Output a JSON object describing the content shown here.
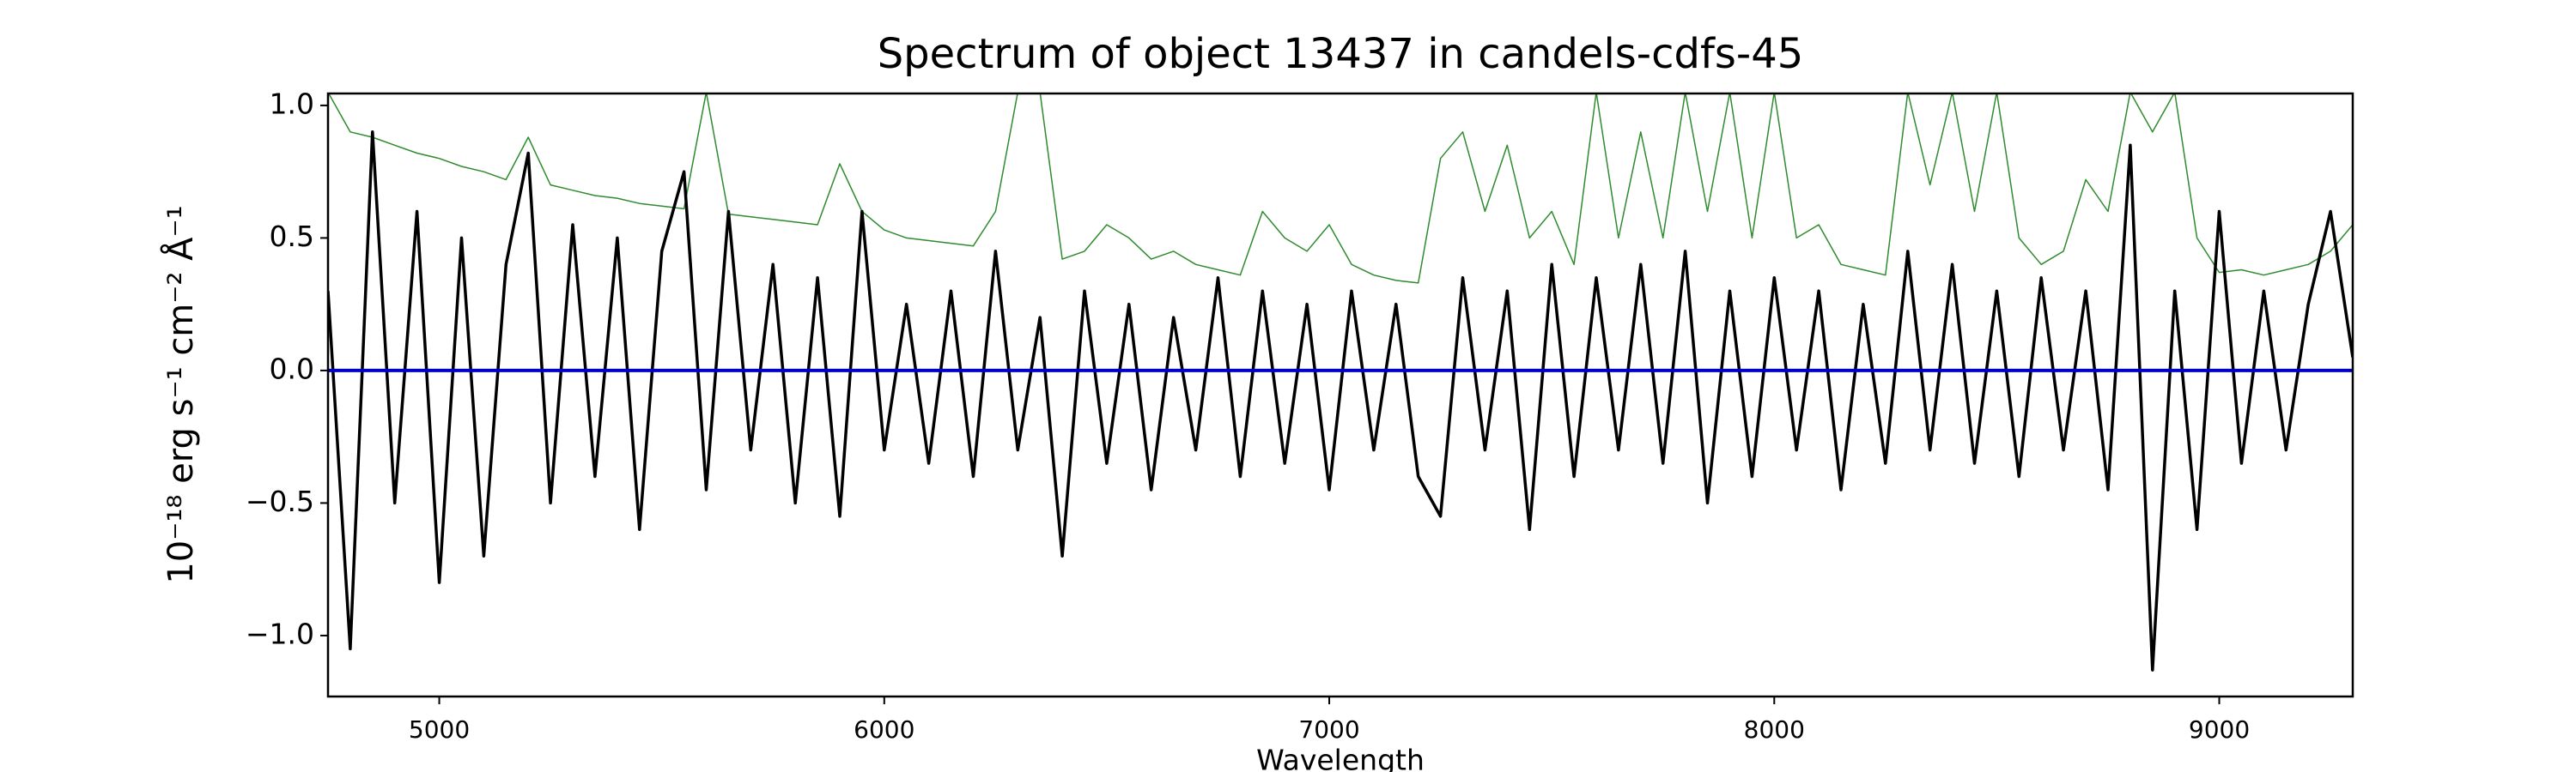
{
  "chart_data": {
    "type": "line",
    "title": "Spectrum of object 13437 in candels-cdfs-45",
    "x_label": "Wavelength",
    "y_label": "10⁻¹⁸ erg s⁻¹ cm⁻² Å⁻¹",
    "x": [
      4750,
      4800,
      4850,
      4900,
      4950,
      5000,
      5050,
      5100,
      5150,
      5200,
      5250,
      5300,
      5350,
      5400,
      5450,
      5500,
      5550,
      5600,
      5650,
      5700,
      5750,
      5800,
      5850,
      5900,
      5950,
      6000,
      6050,
      6100,
      6150,
      6200,
      6250,
      6300,
      6350,
      6400,
      6450,
      6500,
      6550,
      6600,
      6650,
      6700,
      6750,
      6800,
      6850,
      6900,
      6950,
      7000,
      7050,
      7100,
      7150,
      7200,
      7250,
      7300,
      7350,
      7400,
      7450,
      7500,
      7550,
      7600,
      7650,
      7700,
      7750,
      7800,
      7850,
      7900,
      7950,
      8000,
      8050,
      8100,
      8150,
      8200,
      8250,
      8300,
      8350,
      8400,
      8450,
      8500,
      8550,
      8600,
      8650,
      8700,
      8750,
      8800,
      8850,
      8900,
      8950,
      9000,
      9050,
      9100,
      9150,
      9200,
      9250,
      9300
    ],
    "series": [
      {
        "color": "#2e8b2e",
        "width": 1.5,
        "values": [
          1.05,
          0.9,
          0.88,
          0.85,
          0.82,
          0.8,
          0.77,
          0.75,
          0.72,
          0.88,
          0.7,
          0.68,
          0.66,
          0.65,
          0.63,
          0.62,
          0.61,
          1.05,
          0.59,
          0.58,
          0.57,
          0.56,
          0.55,
          0.78,
          0.6,
          0.53,
          0.5,
          0.49,
          0.48,
          0.47,
          0.6,
          1.05,
          1.05,
          0.42,
          0.45,
          0.55,
          0.5,
          0.42,
          0.45,
          0.4,
          0.38,
          0.36,
          0.6,
          0.5,
          0.45,
          0.55,
          0.4,
          0.36,
          0.34,
          0.33,
          0.8,
          0.9,
          0.6,
          0.85,
          0.5,
          0.6,
          0.4,
          1.05,
          0.5,
          0.9,
          0.5,
          1.05,
          0.6,
          1.05,
          0.5,
          1.05,
          0.5,
          0.55,
          0.4,
          0.38,
          0.36,
          1.05,
          0.7,
          1.05,
          0.6,
          1.05,
          0.5,
          0.4,
          0.45,
          0.72,
          0.6,
          1.05,
          0.9,
          1.05,
          0.5,
          0.37,
          0.38,
          0.36,
          0.38,
          0.4,
          0.45,
          0.55
        ]
      },
      {
        "color": "#000000",
        "width": 3.5,
        "values": [
          0.3,
          -1.05,
          0.9,
          -0.5,
          0.6,
          -0.8,
          0.5,
          -0.7,
          0.4,
          0.82,
          -0.5,
          0.55,
          -0.4,
          0.5,
          -0.6,
          0.45,
          0.75,
          -0.45,
          0.6,
          -0.3,
          0.4,
          -0.5,
          0.35,
          -0.55,
          0.6,
          -0.3,
          0.25,
          -0.35,
          0.3,
          -0.4,
          0.45,
          -0.3,
          0.2,
          -0.7,
          0.3,
          -0.35,
          0.25,
          -0.45,
          0.2,
          -0.3,
          0.35,
          -0.4,
          0.3,
          -0.35,
          0.25,
          -0.45,
          0.3,
          -0.3,
          0.25,
          -0.4,
          -0.55,
          0.35,
          -0.3,
          0.3,
          -0.6,
          0.4,
          -0.4,
          0.35,
          -0.3,
          0.4,
          -0.35,
          0.45,
          -0.5,
          0.3,
          -0.4,
          0.35,
          -0.3,
          0.3,
          -0.45,
          0.25,
          -0.35,
          0.45,
          -0.3,
          0.4,
          -0.35,
          0.3,
          -0.4,
          0.35,
          -0.3,
          0.3,
          -0.45,
          0.85,
          -1.13,
          0.3,
          -0.6,
          0.6,
          -0.35,
          0.3,
          -0.3,
          0.25,
          0.6,
          0.05
        ]
      },
      {
        "color": "#0000cc",
        "width": 4,
        "values": [
          0,
          0,
          0,
          0,
          0,
          0,
          0,
          0,
          0,
          0,
          0,
          0,
          0,
          0,
          0,
          0,
          0,
          0,
          0,
          0,
          0,
          0,
          0,
          0,
          0,
          0,
          0,
          0,
          0,
          0,
          0,
          0,
          0,
          0,
          0,
          0,
          0,
          0,
          0,
          0,
          0,
          0,
          0,
          0,
          0,
          0,
          0,
          0,
          0,
          0,
          0,
          0,
          0,
          0,
          0,
          0,
          0,
          0,
          0,
          0,
          0,
          0,
          0,
          0,
          0,
          0,
          0,
          0,
          0,
          0,
          0,
          0,
          0,
          0,
          0,
          0,
          0,
          0,
          0,
          0,
          0,
          0,
          0,
          0,
          0,
          0,
          0,
          0,
          0,
          0,
          0,
          0
        ]
      }
    ],
    "xlim": [
      4750,
      9300
    ],
    "ylim": [
      -1.23,
      1.045
    ],
    "xticks": [
      5000,
      6000,
      7000,
      8000,
      9000
    ],
    "yticks": [
      {
        "value": -1,
        "label": "−1.0"
      },
      {
        "value": -0.5,
        "label": "−0.5"
      },
      {
        "value": 0,
        "label": "0.0"
      },
      0.5,
      {
        "value": 1,
        "label": "1.0"
      }
    ],
    "grid": false
  }
}
